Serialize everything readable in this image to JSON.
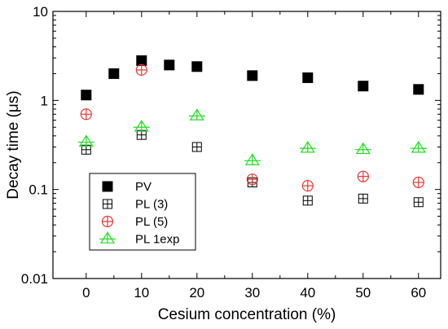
{
  "chart_data": {
    "type": "scatter",
    "xlabel": "Cesium concentration (%)",
    "ylabel": "Decay time (μs)",
    "xlim": [
      -6,
      64
    ],
    "ylim": [
      0.01,
      10
    ],
    "yscale": "log",
    "xticks": [
      0,
      10,
      20,
      30,
      40,
      50,
      60
    ],
    "yticks": [
      {
        "value": 0.01,
        "label": "0.01"
      },
      {
        "value": 0.1,
        "label": "0.1"
      },
      {
        "value": 1,
        "label": "1"
      },
      {
        "value": 10,
        "label": "10"
      }
    ],
    "grid": false,
    "legend_position": "bottom-left",
    "series": [
      {
        "name": "PV",
        "marker": "filled-square",
        "color": "#000000",
        "x": [
          0,
          5,
          10,
          15,
          20,
          30,
          40,
          50,
          60
        ],
        "y": [
          1.15,
          2.0,
          2.8,
          2.5,
          2.4,
          1.9,
          1.8,
          1.45,
          1.33
        ]
      },
      {
        "name": "PL (3)",
        "marker": "crossed-square",
        "color": "#000000",
        "x": [
          0,
          10,
          20,
          30,
          40,
          50,
          60
        ],
        "y": [
          0.28,
          0.41,
          0.3,
          0.12,
          0.075,
          0.079,
          0.072
        ]
      },
      {
        "name": "PL (5)",
        "marker": "crossed-circle",
        "color": "#e53935",
        "x": [
          0,
          10,
          30,
          40,
          50,
          60
        ],
        "y": [
          0.7,
          2.2,
          0.13,
          0.11,
          0.14,
          0.12
        ]
      },
      {
        "name": "PL 1exp",
        "marker": "crossed-triangle",
        "color": "#22dd22",
        "x": [
          0,
          10,
          20,
          30,
          40,
          50,
          60
        ],
        "y": [
          0.34,
          0.5,
          0.67,
          0.21,
          0.29,
          0.28,
          0.29
        ]
      }
    ]
  }
}
